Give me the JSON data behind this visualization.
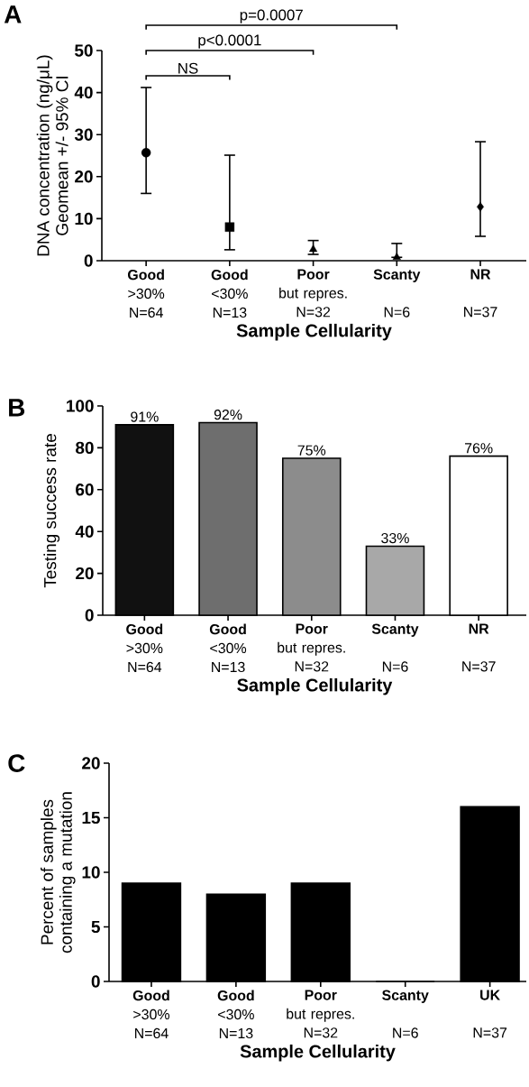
{
  "chart_data": [
    {
      "type": "scatter",
      "title": "A",
      "ylabel": "DNA concentration (ng/μL)\nGeomean +/- 95% CI",
      "xlabel": "Sample Cellularity",
      "categories": [
        "**Good**\n>30%\nN=64",
        "**Good**\n<30%\nN=13",
        "**Poor**\nbut repres.\nN=32",
        "**Scanty**\n\nN=6",
        "**NR**\n\nN=37"
      ],
      "series": [
        {
          "color": "#000000",
          "marker": "circle",
          "values": [
            25.7,
            null,
            null,
            null,
            null
          ],
          "errors": [
            [
              16,
              41.2
            ],
            null,
            null,
            null,
            null
          ]
        },
        {
          "color": "#000000",
          "marker": "square",
          "values": [
            null,
            8,
            null,
            null,
            null
          ],
          "errors": [
            null,
            [
              2.6,
              25.1
            ],
            null,
            null,
            null
          ]
        },
        {
          "color": "#000000",
          "marker": "triangle",
          "values": [
            null,
            null,
            2.7,
            null,
            null
          ],
          "errors": [
            null,
            null,
            [
              1.5,
              4.8
            ],
            null,
            null
          ]
        },
        {
          "color": "#000000",
          "marker": "triangle",
          "values": [
            null,
            null,
            null,
            0.8,
            null
          ],
          "errors": [
            null,
            null,
            null,
            [
              0.8,
              4.1
            ],
            null
          ]
        },
        {
          "color": "#000000",
          "marker": "diamond",
          "values": [
            null,
            null,
            null,
            null,
            12.8
          ],
          "errors": [
            null,
            null,
            null,
            null,
            [
              5.8,
              28.3
            ]
          ]
        }
      ],
      "ylim": [
        0,
        50
      ],
      "yticks": [
        0,
        10,
        20,
        30,
        40,
        50
      ],
      "annotations": [
        "NS",
        "p<0.0001",
        "p=0.0007"
      ]
    },
    {
      "type": "bar",
      "title": "B",
      "ylabel": "Testing success rate",
      "xlabel": "Sample Cellularity",
      "categories": [
        "**Good**\n>30%\nN=64",
        "**Good**\n<30%\nN=13",
        "**Poor**\nbut repres.\nN=32",
        "**Scanty**\n\nN=6",
        "**NR**\n\nN=37"
      ],
      "values": [
        91,
        92,
        75,
        33,
        76
      ],
      "colors": [
        "#111111",
        "#6e6e6e",
        "#8c8c8c",
        "#a8a8a8",
        "#ffffff"
      ],
      "value_labels": [
        "91%",
        "92%",
        "75%",
        "33%",
        "76%"
      ],
      "ylim": [
        0,
        100
      ],
      "yticks": [
        0,
        20,
        40,
        60,
        80,
        100
      ]
    },
    {
      "type": "bar",
      "title": "C",
      "ylabel": "Percent of samples\ncontaining a mutation",
      "xlabel": "Sample Cellularity",
      "categories": [
        "**Good**\n>30%\nN=64",
        "**Good**\n<30%\nN=13",
        "**Poor**\nbut repres.\nN=32",
        "**Scanty**\n\nN=6",
        "**UK**\n\nN=37"
      ],
      "values": [
        9,
        8,
        9,
        0,
        16
      ],
      "color": "#000000",
      "ylim": [
        0,
        20
      ],
      "yticks": [
        0,
        5,
        10,
        15,
        20
      ]
    }
  ]
}
